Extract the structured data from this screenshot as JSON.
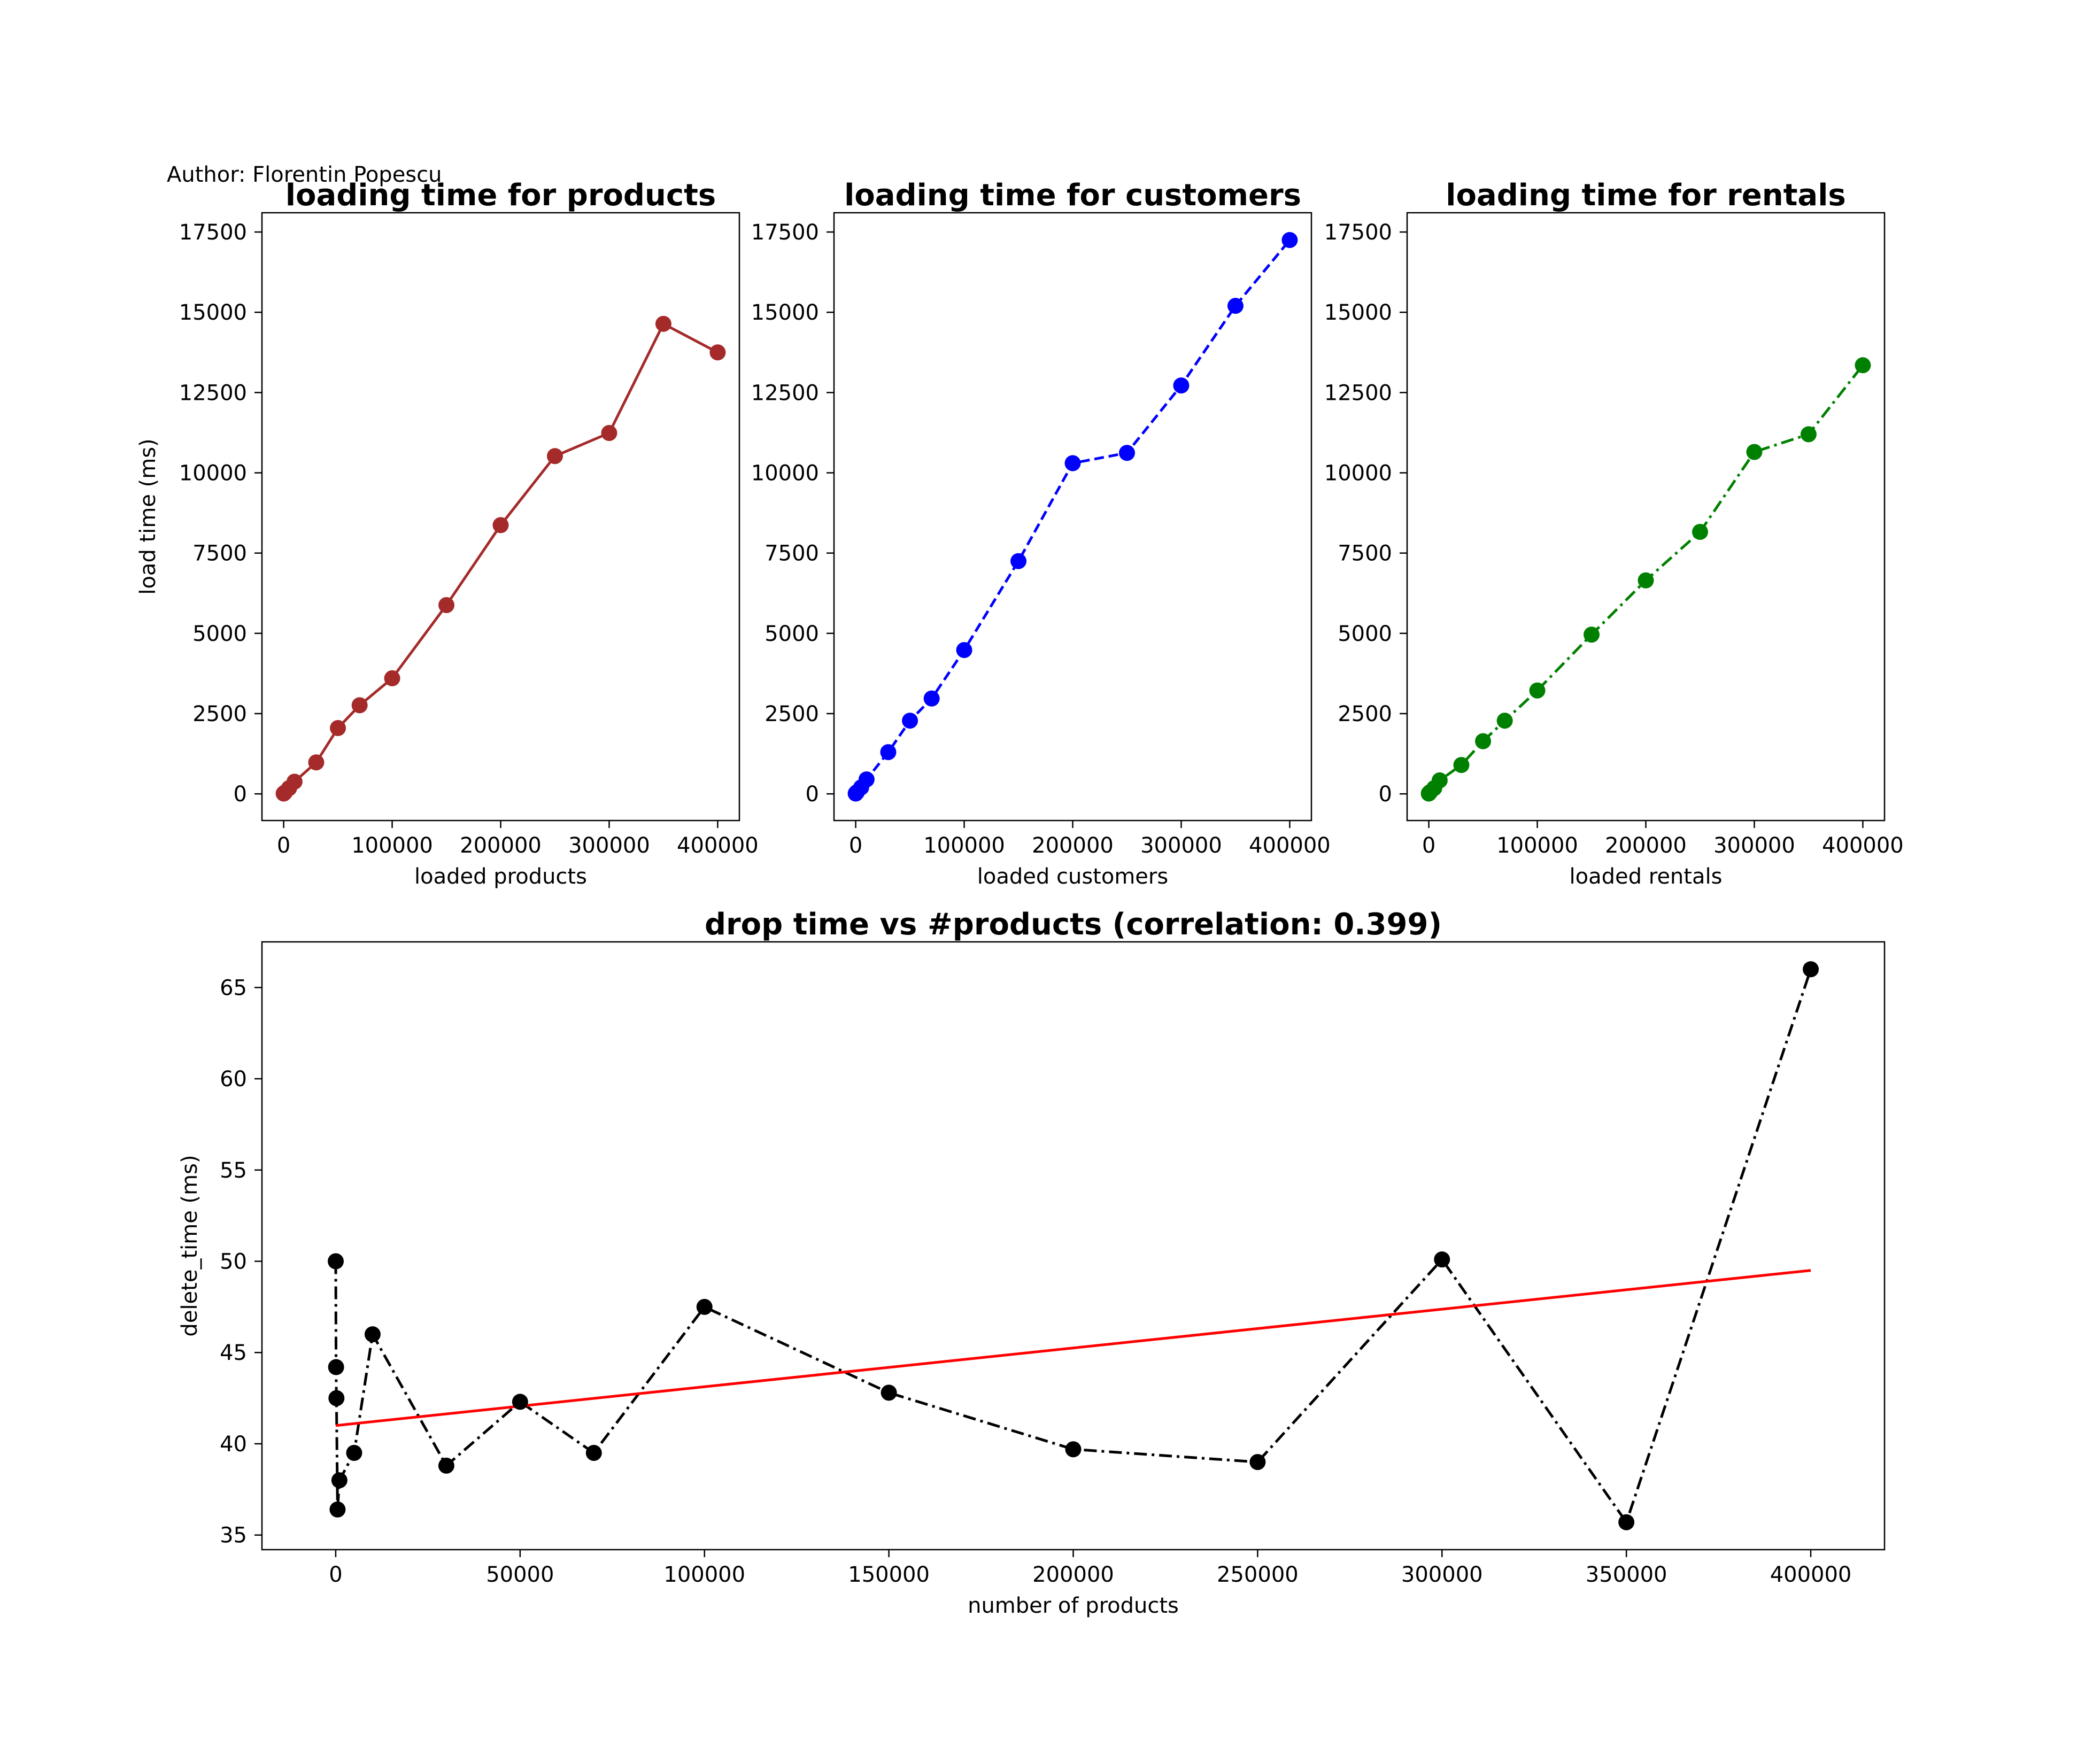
{
  "figure": {
    "author": "Author: Florentin Popescu"
  },
  "chart_data": [
    {
      "type": "line",
      "title": "loading time for products",
      "xlabel": "loaded products",
      "ylabel": "load time (ms)",
      "color": "#a52a2a",
      "line_style": "solid",
      "marker": "circle",
      "xlim": [
        -20000,
        420000
      ],
      "ylim": [
        -830,
        18100
      ],
      "xticks": [
        0,
        100000,
        200000,
        300000,
        400000
      ],
      "yticks": [
        0,
        2500,
        5000,
        7500,
        10000,
        12500,
        15000,
        17500
      ],
      "grid": false,
      "x": [
        10,
        100,
        1000,
        5000,
        10000,
        30000,
        50000,
        70000,
        100000,
        150000,
        200000,
        250000,
        300000,
        350000,
        400000
      ],
      "y": [
        10,
        15,
        40,
        180,
        380,
        980,
        2050,
        2760,
        3600,
        5880,
        8370,
        10520,
        11240,
        14640,
        13750
      ]
    },
    {
      "type": "line",
      "title": "loading time for customers",
      "xlabel": "loaded customers",
      "ylabel": "",
      "color": "#0000ff",
      "line_style": "dashed",
      "marker": "circle",
      "xlim": [
        -20000,
        420000
      ],
      "ylim": [
        -830,
        18100
      ],
      "xticks": [
        0,
        100000,
        200000,
        300000,
        400000
      ],
      "yticks": [
        0,
        2500,
        5000,
        7500,
        10000,
        12500,
        15000,
        17500
      ],
      "grid": false,
      "x": [
        10,
        100,
        1000,
        5000,
        10000,
        30000,
        50000,
        70000,
        100000,
        150000,
        200000,
        250000,
        300000,
        350000,
        400000
      ],
      "y": [
        10,
        20,
        50,
        200,
        450,
        1300,
        2280,
        2970,
        4480,
        7250,
        10300,
        10620,
        12720,
        15200,
        17250
      ]
    },
    {
      "type": "line",
      "title": "loading time for rentals",
      "xlabel": "loaded rentals",
      "ylabel": "",
      "color": "#008000",
      "line_style": "dashdot",
      "marker": "circle",
      "xlim": [
        -20000,
        420000
      ],
      "ylim": [
        -830,
        18100
      ],
      "xticks": [
        0,
        100000,
        200000,
        300000,
        400000
      ],
      "yticks": [
        0,
        2500,
        5000,
        7500,
        10000,
        12500,
        15000,
        17500
      ],
      "grid": false,
      "x": [
        10,
        100,
        1000,
        5000,
        10000,
        30000,
        50000,
        70000,
        100000,
        150000,
        200000,
        250000,
        300000,
        350000,
        400000
      ],
      "y": [
        10,
        20,
        50,
        180,
        420,
        900,
        1640,
        2280,
        3220,
        4960,
        6650,
        8160,
        10650,
        11200,
        13350
      ]
    },
    {
      "type": "line",
      "title": "drop time vs #products (correlation: 0.399)",
      "xlabel": "number of products",
      "ylabel": "delete_time (ms)",
      "color": "#000000",
      "line_style": "dashdot",
      "marker": "circle",
      "xlim": [
        -20000,
        420000
      ],
      "ylim": [
        34.2,
        67.5
      ],
      "xticks": [
        0,
        50000,
        100000,
        150000,
        200000,
        250000,
        300000,
        350000,
        400000
      ],
      "yticks": [
        35,
        40,
        45,
        50,
        55,
        60,
        65
      ],
      "grid": false,
      "x": [
        10,
        100,
        200,
        500,
        1000,
        5000,
        10000,
        30000,
        50000,
        70000,
        100000,
        150000,
        200000,
        250000,
        300000,
        350000,
        400000
      ],
      "y": [
        50.0,
        44.2,
        42.5,
        36.4,
        38.0,
        39.5,
        46.0,
        38.8,
        42.3,
        39.5,
        47.5,
        42.8,
        39.7,
        39.0,
        50.1,
        35.7,
        66.0
      ],
      "trendline": {
        "color": "#ff0000",
        "x": [
          0,
          400000
        ],
        "y": [
          41.0,
          49.5
        ]
      }
    }
  ]
}
